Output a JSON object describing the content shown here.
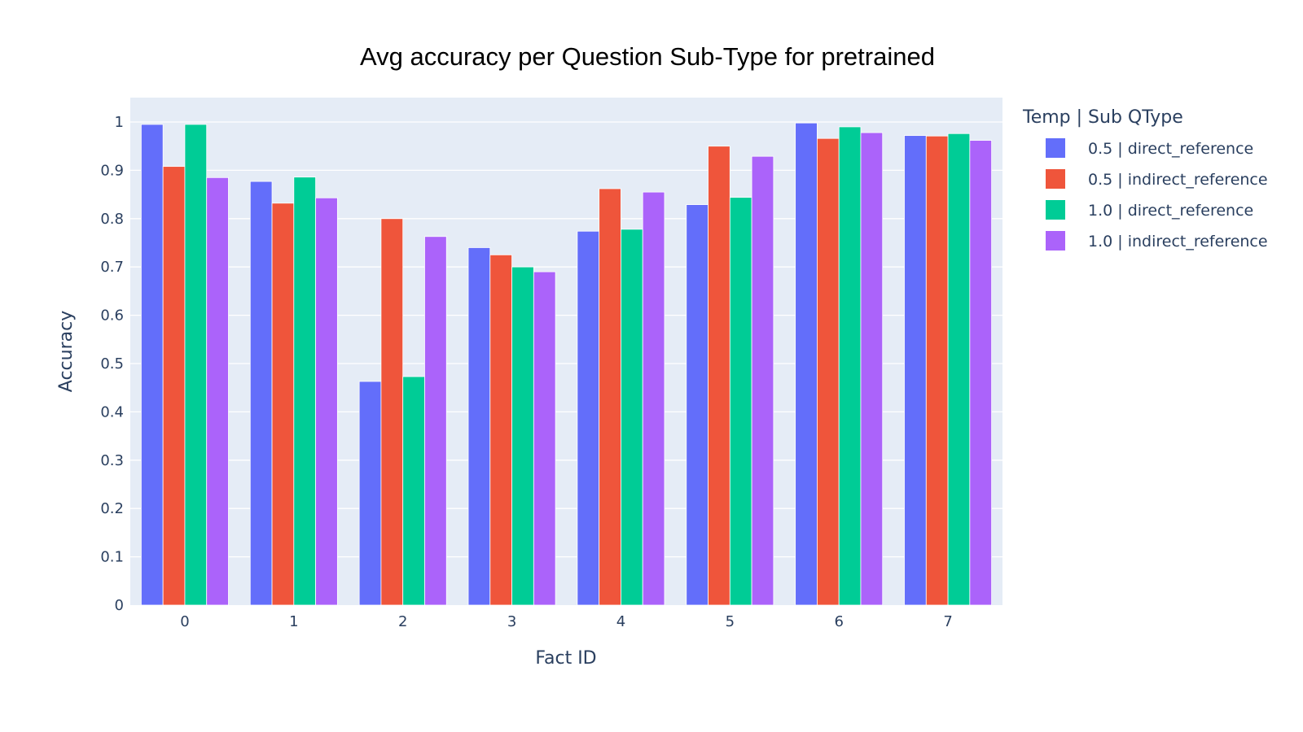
{
  "chart_data": {
    "type": "bar",
    "title": "Avg accuracy per Question Sub-Type for pretrained",
    "xlabel": "Fact ID",
    "ylabel": "Accuracy",
    "categories": [
      "0",
      "1",
      "2",
      "3",
      "4",
      "5",
      "6",
      "7"
    ],
    "yticks": [
      "0",
      "0.1",
      "0.2",
      "0.3",
      "0.4",
      "0.5",
      "0.6",
      "0.7",
      "0.8",
      "0.9",
      "1"
    ],
    "ylim": [
      0,
      1.05
    ],
    "grid": true,
    "legend_title": "Temp | Sub QType",
    "legend_position": "right",
    "series": [
      {
        "name": "0.5 | direct_reference",
        "color": "#636efa",
        "values": [
          0.995,
          0.877,
          0.463,
          0.74,
          0.774,
          0.829,
          0.998,
          0.972
        ]
      },
      {
        "name": "0.5 | indirect_reference",
        "color": "#ef553b",
        "values": [
          0.908,
          0.832,
          0.8,
          0.725,
          0.862,
          0.95,
          0.966,
          0.971
        ]
      },
      {
        "name": "1.0 | direct_reference",
        "color": "#00cc96",
        "values": [
          0.995,
          0.886,
          0.473,
          0.7,
          0.778,
          0.844,
          0.99,
          0.976
        ]
      },
      {
        "name": "1.0 | indirect_reference",
        "color": "#ab63fa",
        "values": [
          0.885,
          0.843,
          0.763,
          0.69,
          0.855,
          0.929,
          0.978,
          0.962
        ]
      }
    ]
  }
}
